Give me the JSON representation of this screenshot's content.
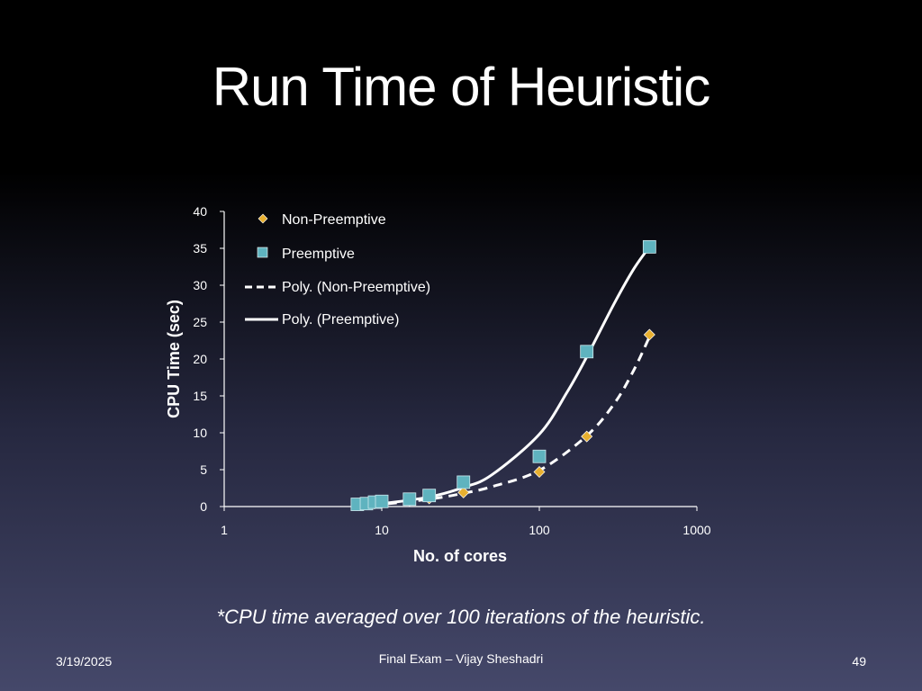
{
  "slide": {
    "title": "Run Time of Heuristic",
    "footnote": "*CPU time averaged over 100 iterations of the heuristic.",
    "footer_date": "3/19/2025",
    "footer_center": "Final Exam – Vijay Sheshadri",
    "page_number": "49"
  },
  "colors": {
    "non_preemptive_marker": "#e8b030",
    "preemptive_marker": "#5fb3bf",
    "curve": "#ffffff",
    "text": "#ffffff"
  },
  "chart_data": {
    "type": "scatter",
    "title": "",
    "xlabel": "No. of cores",
    "ylabel": "CPU Time (sec)",
    "x_scale": "log",
    "xlim": [
      1,
      1000
    ],
    "ylim": [
      0,
      40
    ],
    "x_ticks": [
      1,
      10,
      100,
      1000
    ],
    "y_ticks": [
      0,
      5,
      10,
      15,
      20,
      25,
      30,
      35,
      40
    ],
    "grid": false,
    "legend_position": "top-left",
    "series": [
      {
        "name": "Non-Preemptive",
        "kind": "points",
        "marker": "diamond",
        "color": "#e8b030",
        "x": [
          7,
          8,
          9,
          10,
          15,
          20,
          33,
          100,
          200,
          500
        ],
        "y": [
          0.2,
          0.3,
          0.4,
          0.5,
          0.8,
          1.1,
          1.9,
          4.7,
          9.5,
          23.3
        ]
      },
      {
        "name": "Preemptive",
        "kind": "points",
        "marker": "square",
        "color": "#5fb3bf",
        "x": [
          7,
          8,
          9,
          10,
          15,
          20,
          33,
          100,
          200,
          500
        ],
        "y": [
          0.3,
          0.4,
          0.6,
          0.7,
          1.0,
          1.5,
          3.3,
          6.8,
          21.0,
          35.2
        ]
      },
      {
        "name": "Poly. (Non-Preemptive)",
        "kind": "curve",
        "style": "dashed",
        "color": "#ffffff",
        "x": [
          7,
          10,
          20,
          33,
          50,
          100,
          200,
          300,
          400,
          500
        ],
        "y": [
          0.0,
          0.3,
          1.0,
          1.8,
          2.7,
          4.9,
          9.6,
          14.0,
          18.6,
          23.0
        ]
      },
      {
        "name": "Poly. (Preemptive)",
        "kind": "curve",
        "style": "solid",
        "color": "#ffffff",
        "x": [
          7,
          10,
          20,
          33,
          50,
          100,
          150,
          200,
          300,
          400,
          500
        ],
        "y": [
          0.2,
          0.4,
          1.3,
          2.6,
          4.3,
          9.8,
          15.5,
          20.3,
          27.6,
          32.3,
          35.2
        ]
      }
    ]
  }
}
